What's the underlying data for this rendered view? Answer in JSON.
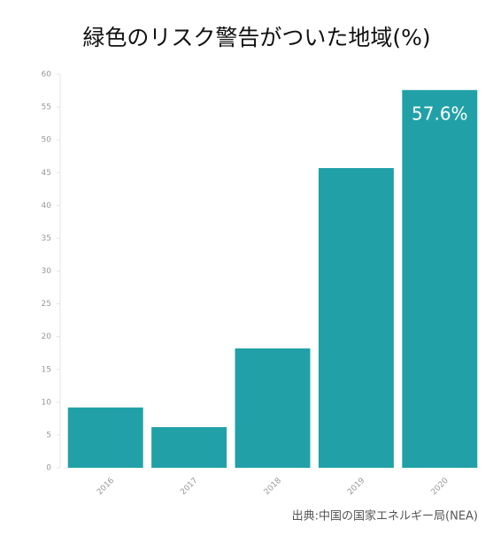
{
  "chart_data": {
    "type": "bar",
    "title": "緑色のリスク警告がついた地域(%)",
    "categories": [
      "2016",
      "2017",
      "2018",
      "2019",
      "2020"
    ],
    "values": [
      9.2,
      6.2,
      18.2,
      45.7,
      57.6
    ],
    "value_labels": [
      null,
      null,
      null,
      null,
      "57.6%"
    ],
    "color": "#21a1a7",
    "ylim": [
      0,
      60
    ],
    "yticks": [
      0,
      5,
      10,
      15,
      20,
      25,
      30,
      35,
      40,
      45,
      50,
      55,
      60
    ],
    "source": "出典:中国の国家エネルギー局(NEA)"
  }
}
